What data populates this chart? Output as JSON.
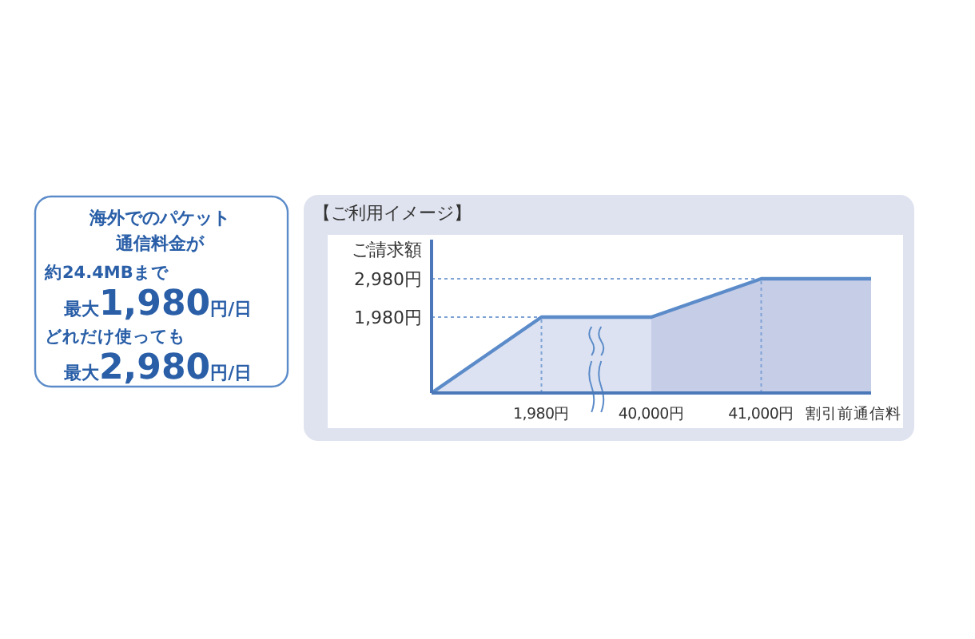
{
  "chart_data": {
    "type": "area",
    "title": "【ご利用イメージ】",
    "ylabel": "ご請求額",
    "xlabel": "割引前通信料",
    "categories": [
      null,
      "1,980円",
      "40,000円",
      "41,000円",
      null
    ],
    "series": [
      {
        "color": "#dce2f1",
        "values": [
          0,
          1980,
          1980,
          null,
          null
        ]
      },
      {
        "color": "#c6cde7",
        "values": [
          null,
          null,
          1980,
          2980,
          2980
        ]
      },
      {
        "type": "line",
        "color": "#5b8bc9",
        "values": [
          0,
          1980,
          1980,
          2980,
          2980
        ]
      }
    ],
    "ylim": [
      0,
      4000
    ],
    "yticks": [
      {
        "value": 0,
        "label": null
      },
      {
        "value": 1980,
        "label": "1,980円"
      },
      {
        "value": 2980,
        "label": "2,980円"
      }
    ],
    "ref_lines": [
      {
        "axis": "y",
        "value": 1980,
        "line_style": "dotted",
        "color": "#7fa3d6"
      },
      {
        "axis": "y",
        "value": 2980,
        "line_style": "dotted",
        "color": "#7fa3d6"
      },
      {
        "axis": "x",
        "value": "1,980円",
        "line_style": "dotted",
        "color": "#7fa3d6"
      },
      {
        "axis": "x",
        "value": "41,000円",
        "line_style": "dotted",
        "color": "#7fa3d6"
      }
    ],
    "annotations": [
      "海外でのパケット",
      "通信料金が",
      "約24.4MBまで",
      "最大1,980円/日",
      "どれだけ使っても",
      "最大2,980円/日"
    ]
  }
}
